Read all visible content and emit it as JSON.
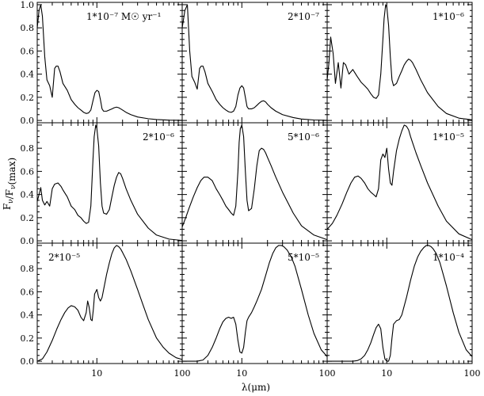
{
  "chart_data": {
    "type": "line",
    "xlabel": "λ(μm)",
    "ylabel": "Fν/Fν(max)",
    "xscale": "log",
    "xlim": [
      2,
      100
    ],
    "ylim": [
      -0.02,
      1.02
    ],
    "x_tick_labels": [
      "10",
      "100"
    ],
    "y_tick_labels": [
      "0.0",
      "0.2",
      "0.4",
      "0.6",
      "0.8",
      "1.0"
    ],
    "layout": "3x3 grid",
    "panels": [
      {
        "label": "1*10⁻⁷ M☉ yr⁻¹",
        "x": [
          2.0,
          2.1,
          2.2,
          2.3,
          2.45,
          2.6,
          2.8,
          3.0,
          3.2,
          3.35,
          3.5,
          3.7,
          4.0,
          4.5,
          5.0,
          5.5,
          6.0,
          6.5,
          7.0,
          7.5,
          8.0,
          8.5,
          9.0,
          9.5,
          10.0,
          10.5,
          11.0,
          11.5,
          12.0,
          13.0,
          14.0,
          15.0,
          16.0,
          17.0,
          18.0,
          19.0,
          20.0,
          22.0,
          25.0,
          30.0,
          40.0,
          50.0,
          70.0,
          100.0
        ],
        "y": [
          0.8,
          0.95,
          1.0,
          0.9,
          0.55,
          0.35,
          0.3,
          0.2,
          0.45,
          0.47,
          0.47,
          0.42,
          0.32,
          0.26,
          0.18,
          0.14,
          0.11,
          0.09,
          0.07,
          0.06,
          0.065,
          0.09,
          0.17,
          0.24,
          0.26,
          0.25,
          0.18,
          0.1,
          0.08,
          0.08,
          0.09,
          0.1,
          0.11,
          0.115,
          0.11,
          0.1,
          0.09,
          0.07,
          0.05,
          0.03,
          0.015,
          0.008,
          0.003,
          0.001
        ]
      },
      {
        "label": "2*10⁻⁷",
        "x": [
          2.0,
          2.15,
          2.3,
          2.45,
          2.6,
          2.8,
          3.0,
          3.2,
          3.35,
          3.5,
          3.7,
          4.0,
          4.5,
          5.0,
          5.5,
          6.0,
          6.5,
          7.0,
          7.5,
          8.0,
          8.5,
          9.0,
          9.5,
          10.0,
          10.5,
          11.0,
          11.5,
          12.0,
          13.0,
          14.0,
          15.0,
          16.0,
          17.0,
          18.0,
          19.0,
          20.0,
          22.0,
          25.0,
          30.0,
          40.0,
          50.0,
          70.0,
          100.0
        ],
        "y": [
          0.8,
          0.95,
          1.0,
          0.6,
          0.38,
          0.33,
          0.27,
          0.45,
          0.47,
          0.47,
          0.42,
          0.32,
          0.25,
          0.18,
          0.14,
          0.11,
          0.09,
          0.075,
          0.07,
          0.08,
          0.12,
          0.22,
          0.28,
          0.3,
          0.28,
          0.2,
          0.12,
          0.1,
          0.1,
          0.11,
          0.13,
          0.15,
          0.165,
          0.17,
          0.16,
          0.14,
          0.11,
          0.08,
          0.05,
          0.025,
          0.012,
          0.004,
          0.001
        ]
      },
      {
        "label": "1*10⁻⁶",
        "x": [
          2.0,
          2.1,
          2.2,
          2.35,
          2.5,
          2.7,
          2.9,
          3.1,
          3.3,
          3.6,
          4.0,
          4.5,
          5.0,
          5.5,
          6.0,
          6.5,
          7.0,
          7.5,
          8.0,
          8.5,
          9.0,
          9.3,
          9.7,
          10.0,
          10.5,
          11.0,
          11.5,
          12.0,
          13.0,
          14.0,
          15.0,
          16.0,
          17.0,
          18.0,
          19.0,
          20.0,
          22.0,
          25.0,
          30.0,
          40.0,
          50.0,
          70.0,
          100.0
        ],
        "y": [
          0.35,
          0.5,
          0.72,
          0.58,
          0.32,
          0.5,
          0.28,
          0.5,
          0.48,
          0.4,
          0.44,
          0.38,
          0.33,
          0.3,
          0.27,
          0.23,
          0.2,
          0.19,
          0.22,
          0.4,
          0.7,
          0.88,
          1.0,
          0.98,
          0.82,
          0.55,
          0.35,
          0.3,
          0.32,
          0.38,
          0.43,
          0.48,
          0.51,
          0.53,
          0.52,
          0.5,
          0.44,
          0.35,
          0.24,
          0.12,
          0.06,
          0.02,
          0.005
        ]
      },
      {
        "label": "2*10⁻⁶",
        "x": [
          2.0,
          2.1,
          2.2,
          2.3,
          2.45,
          2.6,
          2.8,
          3.0,
          3.2,
          3.5,
          3.8,
          4.0,
          4.5,
          5.0,
          5.5,
          6.0,
          6.5,
          7.0,
          7.5,
          8.0,
          8.5,
          9.0,
          9.3,
          9.7,
          10.0,
          10.5,
          11.0,
          11.5,
          12.0,
          13.0,
          14.0,
          15.0,
          16.0,
          17.0,
          18.0,
          19.0,
          20.0,
          22.0,
          25.0,
          30.0,
          40.0,
          50.0,
          70.0,
          100.0
        ],
        "y": [
          0.34,
          0.4,
          0.46,
          0.35,
          0.31,
          0.34,
          0.3,
          0.45,
          0.49,
          0.5,
          0.47,
          0.44,
          0.38,
          0.3,
          0.27,
          0.22,
          0.2,
          0.17,
          0.15,
          0.16,
          0.3,
          0.7,
          0.9,
          1.0,
          0.97,
          0.82,
          0.5,
          0.3,
          0.24,
          0.23,
          0.27,
          0.38,
          0.48,
          0.55,
          0.59,
          0.58,
          0.54,
          0.45,
          0.35,
          0.23,
          0.11,
          0.05,
          0.015,
          0.003
        ]
      },
      {
        "label": "5*10⁻⁶",
        "x": [
          2.0,
          2.2,
          2.4,
          2.7,
          3.0,
          3.3,
          3.6,
          4.0,
          4.5,
          5.0,
          5.5,
          6.0,
          6.5,
          7.0,
          7.5,
          8.0,
          8.5,
          9.0,
          9.3,
          9.6,
          10.0,
          10.5,
          11.0,
          11.5,
          12.0,
          13.0,
          14.0,
          15.0,
          16.0,
          17.0,
          18.0,
          19.0,
          20.0,
          22.0,
          25.0,
          30.0,
          40.0,
          50.0,
          70.0,
          100.0
        ],
        "y": [
          0.12,
          0.2,
          0.28,
          0.38,
          0.46,
          0.52,
          0.55,
          0.55,
          0.52,
          0.45,
          0.4,
          0.35,
          0.3,
          0.27,
          0.24,
          0.22,
          0.3,
          0.6,
          0.85,
          0.97,
          1.0,
          0.9,
          0.6,
          0.35,
          0.26,
          0.28,
          0.45,
          0.65,
          0.78,
          0.8,
          0.79,
          0.76,
          0.72,
          0.65,
          0.55,
          0.42,
          0.24,
          0.13,
          0.05,
          0.01
        ]
      },
      {
        "label": "1*10⁻⁵",
        "x": [
          2.0,
          2.3,
          2.6,
          3.0,
          3.4,
          3.8,
          4.2,
          4.6,
          5.0,
          5.5,
          6.0,
          6.5,
          7.0,
          7.5,
          8.0,
          8.5,
          9.0,
          9.5,
          10.0,
          10.5,
          11.0,
          11.5,
          12.0,
          13.0,
          14.0,
          15.0,
          16.0,
          17.0,
          18.0,
          19.0,
          20.0,
          22.0,
          25.0,
          30.0,
          40.0,
          50.0,
          70.0,
          100.0
        ],
        "y": [
          0.1,
          0.15,
          0.22,
          0.32,
          0.42,
          0.5,
          0.55,
          0.56,
          0.54,
          0.5,
          0.45,
          0.42,
          0.4,
          0.38,
          0.45,
          0.7,
          0.75,
          0.72,
          0.8,
          0.62,
          0.5,
          0.48,
          0.6,
          0.78,
          0.88,
          0.95,
          1.0,
          0.99,
          0.96,
          0.9,
          0.85,
          0.76,
          0.65,
          0.5,
          0.3,
          0.17,
          0.06,
          0.01
        ]
      },
      {
        "label": "2*10⁻⁵",
        "x": [
          2.0,
          2.3,
          2.6,
          3.0,
          3.4,
          3.8,
          4.2,
          4.6,
          5.0,
          5.5,
          6.0,
          6.5,
          7.0,
          7.5,
          7.8,
          8.1,
          8.5,
          8.8,
          9.1,
          9.4,
          9.7,
          10.0,
          10.5,
          11.0,
          11.5,
          12.0,
          13.0,
          14.0,
          15.0,
          16.0,
          17.0,
          18.0,
          19.0,
          20.0,
          22.0,
          25.0,
          30.0,
          35.0,
          40.0,
          50.0,
          60.0,
          70.0,
          85.0,
          100.0
        ],
        "y": [
          0.0,
          0.02,
          0.08,
          0.18,
          0.28,
          0.36,
          0.42,
          0.46,
          0.48,
          0.47,
          0.44,
          0.38,
          0.35,
          0.42,
          0.52,
          0.47,
          0.36,
          0.35,
          0.45,
          0.58,
          0.6,
          0.62,
          0.55,
          0.52,
          0.55,
          0.62,
          0.75,
          0.85,
          0.93,
          0.98,
          1.0,
          0.99,
          0.97,
          0.94,
          0.88,
          0.78,
          0.62,
          0.48,
          0.36,
          0.2,
          0.12,
          0.07,
          0.03,
          0.015
        ]
      },
      {
        "label": "5*10⁻⁵",
        "x": [
          2.0,
          2.5,
          3.0,
          3.5,
          4.0,
          4.5,
          5.0,
          5.5,
          6.0,
          6.5,
          7.0,
          7.5,
          8.0,
          8.5,
          9.0,
          9.5,
          10.0,
          10.5,
          11.0,
          11.5,
          12.0,
          13.0,
          14.0,
          15.0,
          17.0,
          19.0,
          21.0,
          23.0,
          25.0,
          27.0,
          29.0,
          31.0,
          34.0,
          38.0,
          42.0,
          50.0,
          60.0,
          70.0,
          85.0,
          100.0
        ],
        "y": [
          0.0,
          0.0,
          0.0,
          0.01,
          0.05,
          0.12,
          0.2,
          0.28,
          0.34,
          0.37,
          0.38,
          0.37,
          0.38,
          0.32,
          0.18,
          0.08,
          0.07,
          0.12,
          0.25,
          0.35,
          0.38,
          0.42,
          0.47,
          0.52,
          0.62,
          0.74,
          0.85,
          0.93,
          0.98,
          1.0,
          1.0,
          0.99,
          0.96,
          0.9,
          0.82,
          0.62,
          0.4,
          0.24,
          0.1,
          0.04
        ]
      },
      {
        "label": "1*10⁻⁴",
        "x": [
          2.0,
          3.0,
          4.0,
          4.5,
          5.0,
          5.5,
          6.0,
          6.5,
          7.0,
          7.5,
          8.0,
          8.5,
          9.0,
          9.5,
          10.0,
          10.5,
          11.0,
          11.5,
          12.0,
          13.0,
          14.0,
          15.0,
          17.0,
          19.0,
          21.0,
          23.0,
          25.0,
          27.0,
          29.0,
          31.0,
          33.0,
          35.0,
          38.0,
          42.0,
          50.0,
          60.0,
          70.0,
          85.0,
          100.0
        ],
        "y": [
          0.0,
          0.0,
          0.0,
          0.005,
          0.02,
          0.05,
          0.1,
          0.16,
          0.23,
          0.29,
          0.32,
          0.28,
          0.12,
          0.02,
          0.0,
          0.0,
          0.05,
          0.2,
          0.32,
          0.35,
          0.36,
          0.4,
          0.55,
          0.7,
          0.82,
          0.9,
          0.95,
          0.98,
          1.0,
          1.0,
          0.99,
          0.97,
          0.93,
          0.85,
          0.65,
          0.42,
          0.25,
          0.1,
          0.04
        ]
      }
    ]
  }
}
